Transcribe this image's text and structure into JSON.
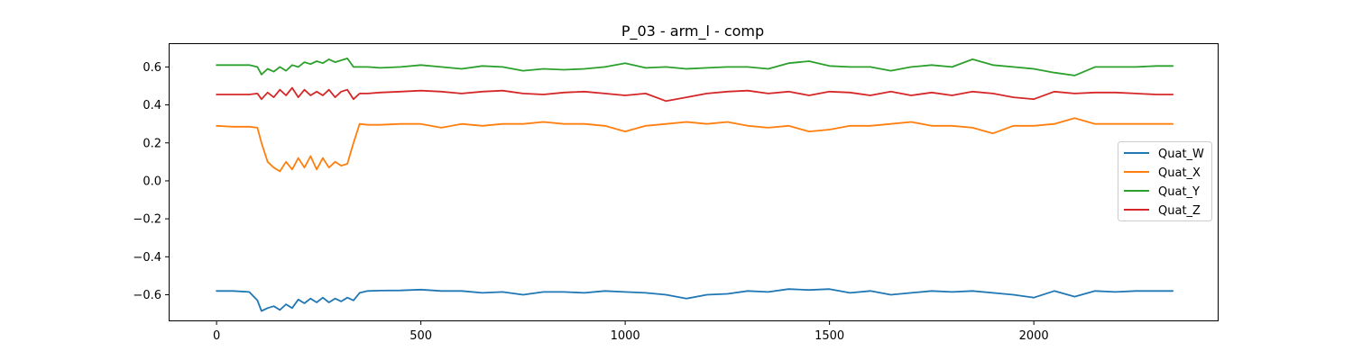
{
  "chart_data": {
    "type": "line",
    "title": "P_03 - arm_l - comp",
    "xlabel": "",
    "ylabel": "",
    "xlim": [
      -115,
      2450
    ],
    "ylim": [
      -0.735,
      0.725
    ],
    "xticks": [
      0,
      500,
      1000,
      1500,
      2000
    ],
    "yticks": [
      -0.6,
      -0.4,
      -0.2,
      0.0,
      0.2,
      0.4,
      0.6
    ],
    "ytick_labels": [
      "−0.6",
      "−0.4",
      "−0.2",
      "0.0",
      "0.2",
      "0.4",
      "0.6"
    ],
    "xtick_labels": [
      "0",
      "500",
      "1000",
      "1500",
      "2000"
    ],
    "grid": false,
    "legend_position": "center-right",
    "x": [
      0,
      40,
      80,
      100,
      110,
      125,
      140,
      155,
      170,
      185,
      200,
      215,
      230,
      245,
      260,
      275,
      290,
      305,
      320,
      335,
      350,
      370,
      400,
      450,
      500,
      550,
      600,
      650,
      700,
      750,
      800,
      850,
      900,
      950,
      1000,
      1050,
      1100,
      1150,
      1200,
      1250,
      1300,
      1350,
      1400,
      1450,
      1500,
      1550,
      1600,
      1650,
      1700,
      1750,
      1800,
      1850,
      1900,
      1950,
      2000,
      2050,
      2100,
      2150,
      2200,
      2250,
      2300,
      2340
    ],
    "series": [
      {
        "name": "Quat_W",
        "color": "#1f77b4",
        "values": [
          -0.58,
          -0.58,
          -0.585,
          -0.63,
          -0.685,
          -0.67,
          -0.66,
          -0.68,
          -0.65,
          -0.67,
          -0.625,
          -0.645,
          -0.62,
          -0.64,
          -0.615,
          -0.64,
          -0.62,
          -0.635,
          -0.615,
          -0.63,
          -0.59,
          -0.58,
          -0.578,
          -0.577,
          -0.573,
          -0.58,
          -0.58,
          -0.59,
          -0.585,
          -0.6,
          -0.585,
          -0.585,
          -0.59,
          -0.58,
          -0.585,
          -0.59,
          -0.6,
          -0.62,
          -0.6,
          -0.595,
          -0.58,
          -0.585,
          -0.57,
          -0.575,
          -0.57,
          -0.59,
          -0.58,
          -0.6,
          -0.59,
          -0.58,
          -0.585,
          -0.58,
          -0.59,
          -0.6,
          -0.615,
          -0.58,
          -0.61,
          -0.58,
          -0.585,
          -0.58,
          -0.58,
          -0.58
        ]
      },
      {
        "name": "Quat_X",
        "color": "#ff7f0e",
        "values": [
          0.29,
          0.285,
          0.285,
          0.28,
          0.2,
          0.1,
          0.07,
          0.05,
          0.1,
          0.06,
          0.12,
          0.07,
          0.13,
          0.06,
          0.12,
          0.07,
          0.1,
          0.08,
          0.09,
          0.2,
          0.3,
          0.295,
          0.295,
          0.3,
          0.3,
          0.28,
          0.3,
          0.29,
          0.3,
          0.3,
          0.31,
          0.3,
          0.3,
          0.29,
          0.26,
          0.29,
          0.3,
          0.31,
          0.3,
          0.31,
          0.29,
          0.28,
          0.29,
          0.26,
          0.27,
          0.29,
          0.29,
          0.3,
          0.31,
          0.29,
          0.29,
          0.28,
          0.25,
          0.29,
          0.29,
          0.3,
          0.33,
          0.3,
          0.3,
          0.3,
          0.3,
          0.3
        ]
      },
      {
        "name": "Quat_Y",
        "color": "#2ca02c",
        "values": [
          0.61,
          0.61,
          0.61,
          0.6,
          0.56,
          0.59,
          0.575,
          0.6,
          0.58,
          0.61,
          0.6,
          0.625,
          0.615,
          0.63,
          0.62,
          0.64,
          0.625,
          0.635,
          0.645,
          0.6,
          0.6,
          0.6,
          0.595,
          0.6,
          0.61,
          0.6,
          0.59,
          0.605,
          0.6,
          0.58,
          0.59,
          0.585,
          0.59,
          0.6,
          0.62,
          0.595,
          0.6,
          0.59,
          0.595,
          0.6,
          0.6,
          0.59,
          0.62,
          0.63,
          0.605,
          0.6,
          0.6,
          0.58,
          0.6,
          0.61,
          0.6,
          0.64,
          0.61,
          0.6,
          0.59,
          0.57,
          0.555,
          0.6,
          0.6,
          0.6,
          0.605,
          0.605
        ]
      },
      {
        "name": "Quat_Z",
        "color": "#d62728",
        "values": [
          0.455,
          0.455,
          0.455,
          0.46,
          0.43,
          0.465,
          0.44,
          0.48,
          0.45,
          0.49,
          0.44,
          0.48,
          0.45,
          0.47,
          0.45,
          0.48,
          0.44,
          0.47,
          0.48,
          0.43,
          0.46,
          0.46,
          0.465,
          0.47,
          0.475,
          0.47,
          0.46,
          0.47,
          0.475,
          0.46,
          0.455,
          0.465,
          0.47,
          0.46,
          0.45,
          0.46,
          0.42,
          0.44,
          0.46,
          0.47,
          0.475,
          0.46,
          0.47,
          0.45,
          0.47,
          0.465,
          0.45,
          0.47,
          0.45,
          0.465,
          0.45,
          0.47,
          0.46,
          0.44,
          0.43,
          0.47,
          0.46,
          0.465,
          0.465,
          0.46,
          0.455,
          0.455
        ]
      }
    ]
  }
}
